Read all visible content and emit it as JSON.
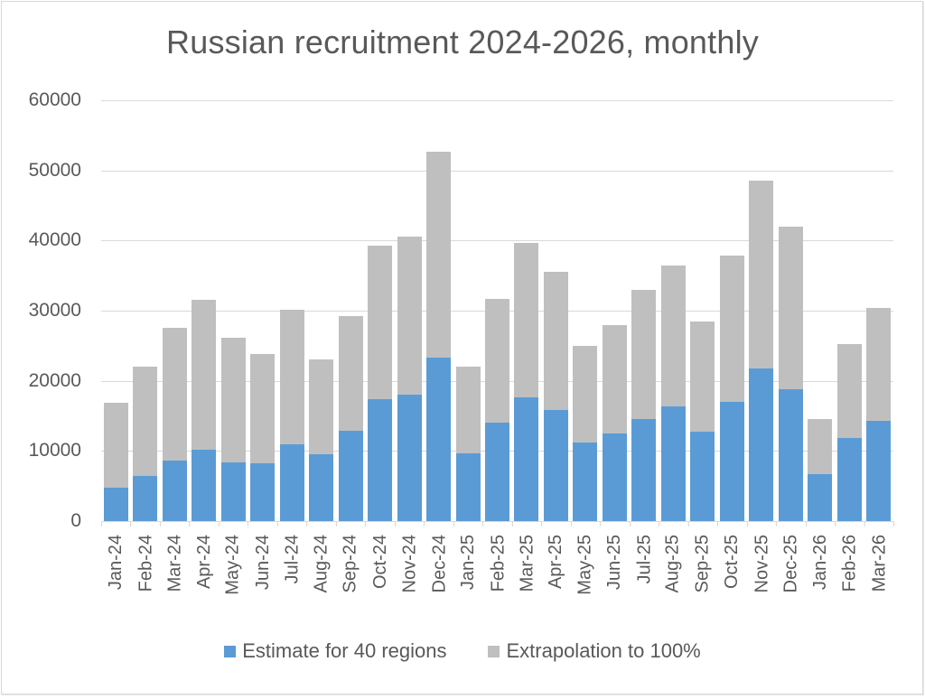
{
  "chart_data": {
    "type": "bar",
    "stacked": true,
    "title": "Russian recruitment 2024-2026, monthly",
    "xlabel": "",
    "ylabel": "",
    "ylim": [
      0,
      60000
    ],
    "yticks": [
      0,
      10000,
      20000,
      30000,
      40000,
      50000,
      60000
    ],
    "ytick_labels": [
      "0",
      "10000",
      "20000",
      "30000",
      "40000",
      "50000",
      "60000"
    ],
    "grid": true,
    "legend_position": "bottom",
    "categories": [
      "Jan-24",
      "Feb-24",
      "Mar-24",
      "Apr-24",
      "May-24",
      "Jun-24",
      "Jul-24",
      "Aug-24",
      "Sep-24",
      "Oct-24",
      "Nov-24",
      "Dec-24",
      "Jan-25",
      "Feb-25",
      "Mar-25",
      "Apr-25",
      "May-25",
      "Jun-25",
      "Jul-25",
      "Aug-25",
      "Sep-25",
      "Oct-25",
      "Nov-25",
      "Dec-25",
      "Jan-26",
      "Feb-26",
      "Mar-26"
    ],
    "series": [
      {
        "name": "Estimate for 40 regions",
        "color": "#5b9bd5",
        "values": [
          4800,
          6400,
          8600,
          10200,
          8400,
          8300,
          10900,
          9500,
          12900,
          17400,
          18000,
          23300,
          9700,
          14000,
          17700,
          15900,
          11200,
          12500,
          14600,
          16300,
          12700,
          17000,
          21800,
          18800,
          6700,
          11800,
          14300
        ]
      },
      {
        "name": "Extrapolation to 100%",
        "color": "#bfbfbf",
        "values": [
          12100,
          15600,
          18900,
          21300,
          17700,
          15500,
          19200,
          13500,
          16300,
          21900,
          22500,
          29300,
          12300,
          17700,
          21900,
          19700,
          13800,
          15500,
          18300,
          20200,
          15700,
          20800,
          26800,
          23200,
          7800,
          13400,
          16100
        ]
      }
    ],
    "totals": [
      16900,
      22000,
      27500,
      31500,
      26100,
      23800,
      30100,
      23000,
      29200,
      39300,
      40500,
      52600,
      22000,
      31700,
      39600,
      35600,
      25000,
      28000,
      32900,
      36500,
      28400,
      37800,
      48600,
      42000,
      14500,
      25200,
      30400
    ]
  },
  "legend": {
    "items": [
      {
        "label": "Estimate for 40 regions",
        "color": "#5b9bd5"
      },
      {
        "label": "Extrapolation to 100%",
        "color": "#bfbfbf"
      }
    ]
  },
  "colors": {
    "gridline": "#d9d9d9",
    "text": "#595959",
    "background": "#ffffff"
  }
}
